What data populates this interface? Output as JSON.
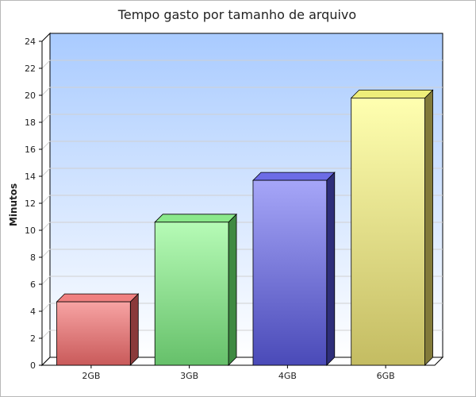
{
  "chart_data": {
    "type": "bar",
    "title": "Tempo gasto por tamanho de arquivo",
    "ylabel": "Minutos",
    "xlabel": "",
    "categories": [
      "2GB",
      "3GB",
      "4GB",
      "6GB"
    ],
    "values": [
      4.7,
      10.6,
      13.7,
      19.8
    ],
    "ylim": [
      0,
      24
    ],
    "yticks": [
      0,
      2,
      4,
      6,
      8,
      10,
      12,
      14,
      16,
      18,
      20,
      22,
      24
    ],
    "grid": true,
    "legend": "none",
    "three_d": true,
    "colors": [
      {
        "front_top": "#f7a3a3",
        "front_bottom": "#c95a5a",
        "top": "#f08080",
        "side": "#8a3a3a"
      },
      {
        "front_top": "#b6fbb6",
        "front_bottom": "#66c06a",
        "top": "#8ae88a",
        "side": "#3f8a42"
      },
      {
        "front_top": "#a6a6f8",
        "front_bottom": "#4a4ab8",
        "top": "#6c6ce6",
        "side": "#2e2e7a"
      },
      {
        "front_top": "#ffffb0",
        "front_bottom": "#c4bc62",
        "top": "#eeee7a",
        "side": "#827a3a"
      }
    ],
    "plot_background": {
      "top": "#a9cbff",
      "bottom": "#ffffff"
    },
    "grid_color": "#d0d0d0",
    "axis_color": "#000000"
  }
}
